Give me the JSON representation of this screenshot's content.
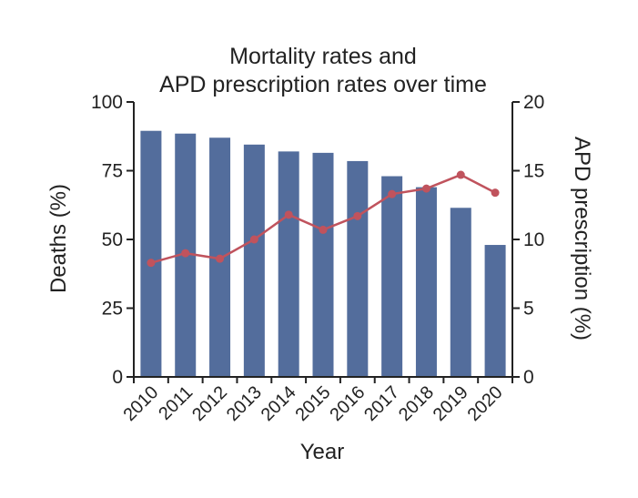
{
  "chart_data": {
    "type": "bar",
    "title_lines": [
      "Mortality rates and",
      "APD prescription rates over time"
    ],
    "xlabel": "Year",
    "ylabel": "Deaths (%)",
    "y2label": "APD prescription (%)",
    "categories": [
      "2010",
      "2011",
      "2012",
      "2013",
      "2014",
      "2015",
      "2016",
      "2017",
      "2018",
      "2019",
      "2020"
    ],
    "ylim": [
      0,
      100
    ],
    "y_ticks": [
      "0",
      "25",
      "50",
      "75",
      "100"
    ],
    "y2lim": [
      0,
      20
    ],
    "y2_ticks": [
      "0",
      "5",
      "10",
      "15",
      "20"
    ],
    "series": [
      {
        "type": "bar",
        "axis": "left",
        "color": "#536d9c",
        "values": [
          89.5,
          88.5,
          87,
          84.5,
          82,
          81.5,
          78.5,
          73,
          69,
          61.5,
          48
        ]
      },
      {
        "type": "line",
        "axis": "right",
        "color": "#c0535d",
        "values": [
          8.3,
          9.0,
          8.6,
          10.0,
          11.8,
          10.7,
          11.7,
          13.3,
          13.7,
          14.7,
          13.4
        ]
      }
    ],
    "grid": false,
    "legend": "none"
  }
}
